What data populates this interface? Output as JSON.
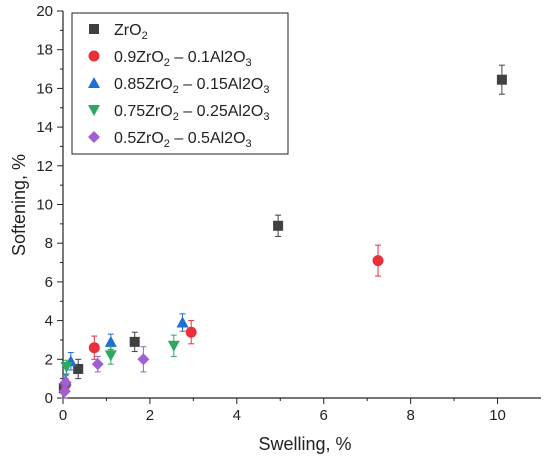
{
  "chart_data": {
    "type": "scatter",
    "xlabel": "Swelling, %",
    "ylabel": "Softening, %",
    "xlim": [
      0,
      11
    ],
    "ylim": [
      0,
      20
    ],
    "x_ticks": [
      0,
      2,
      4,
      6,
      8,
      10
    ],
    "y_ticks": [
      0,
      2,
      4,
      6,
      8,
      10,
      12,
      14,
      16,
      18,
      20
    ],
    "grid": false,
    "legend_position": "top-left",
    "series": [
      {
        "name": "ZrO2",
        "marker": "square",
        "color": "#404040",
        "points": [
          {
            "x": 0.02,
            "y": 0.5,
            "err": 0.3
          },
          {
            "x": 0.35,
            "y": 1.5,
            "err": 0.5
          },
          {
            "x": 1.65,
            "y": 2.9,
            "err": 0.5
          },
          {
            "x": 4.95,
            "y": 8.9,
            "err": 0.55
          },
          {
            "x": 10.1,
            "y": 16.45,
            "err": 0.75
          }
        ]
      },
      {
        "name": "0.9ZrO2 – 0.1Al2O3",
        "marker": "circle",
        "color": "#e8303a",
        "points": [
          {
            "x": 0.06,
            "y": 0.7,
            "err": 0.3
          },
          {
            "x": 0.72,
            "y": 2.6,
            "err": 0.6
          },
          {
            "x": 2.95,
            "y": 3.4,
            "err": 0.6
          },
          {
            "x": 7.25,
            "y": 7.1,
            "err": 0.8
          }
        ]
      },
      {
        "name": "0.85ZrO2 – 0.15Al2O3",
        "marker": "triangle-up",
        "color": "#1f6fd6",
        "points": [
          {
            "x": 0.06,
            "y": 0.9,
            "err": 0.3
          },
          {
            "x": 0.18,
            "y": 1.9,
            "err": 0.45
          },
          {
            "x": 1.1,
            "y": 2.9,
            "err": 0.4
          },
          {
            "x": 2.75,
            "y": 3.9,
            "err": 0.45
          }
        ]
      },
      {
        "name": "0.75ZrO2 – 0.25Al2O3",
        "marker": "triangle-down",
        "color": "#2ea860",
        "points": [
          {
            "x": 0.08,
            "y": 1.6,
            "err": 0.35
          },
          {
            "x": 1.1,
            "y": 2.2,
            "err": 0.45
          },
          {
            "x": 2.55,
            "y": 2.7,
            "err": 0.55
          }
        ]
      },
      {
        "name": "0.5ZrO2 – 0.5Al2O3",
        "marker": "diamond",
        "color": "#a15fd4",
        "points": [
          {
            "x": 0.04,
            "y": 0.35,
            "err": 0.35
          },
          {
            "x": 0.06,
            "y": 0.8,
            "err": 0.35
          },
          {
            "x": 0.8,
            "y": 1.75,
            "err": 0.4
          },
          {
            "x": 1.85,
            "y": 2.0,
            "err": 0.65
          }
        ]
      }
    ]
  }
}
